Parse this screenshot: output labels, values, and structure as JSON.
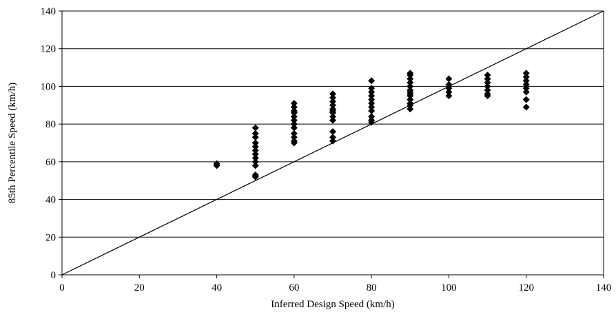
{
  "chart_data": {
    "type": "scatter",
    "title": "",
    "xlabel": "Inferred Design Speed (km/h)",
    "ylabel": "85th Percentile Speed (km/h)",
    "xlim": [
      0,
      140
    ],
    "ylim": [
      0,
      140
    ],
    "x_ticks": [
      "0",
      "20",
      "40",
      "60",
      "80",
      "100",
      "120",
      "140"
    ],
    "y_ticks": [
      "0",
      "20",
      "40",
      "60",
      "80",
      "100",
      "120",
      "140"
    ],
    "grid": "horizontal",
    "legend": "none",
    "reference_line": {
      "from": [
        0,
        0
      ],
      "to": [
        140,
        140
      ]
    },
    "marker": "diamond",
    "marker_color": "#000000",
    "points": [
      [
        40,
        59
      ],
      [
        40,
        58
      ],
      [
        50,
        78
      ],
      [
        50,
        75
      ],
      [
        50,
        73
      ],
      [
        50,
        70
      ],
      [
        50,
        68
      ],
      [
        50,
        66
      ],
      [
        50,
        64
      ],
      [
        50,
        62
      ],
      [
        50,
        60
      ],
      [
        50,
        58
      ],
      [
        50,
        53
      ],
      [
        50,
        52
      ],
      [
        60,
        91
      ],
      [
        60,
        89
      ],
      [
        60,
        87
      ],
      [
        60,
        86
      ],
      [
        60,
        84
      ],
      [
        60,
        82
      ],
      [
        60,
        80
      ],
      [
        60,
        78
      ],
      [
        60,
        75
      ],
      [
        60,
        73
      ],
      [
        60,
        71
      ],
      [
        60,
        70
      ],
      [
        70,
        96
      ],
      [
        70,
        94
      ],
      [
        70,
        92
      ],
      [
        70,
        90
      ],
      [
        70,
        88
      ],
      [
        70,
        87
      ],
      [
        70,
        86
      ],
      [
        70,
        84
      ],
      [
        70,
        82
      ],
      [
        70,
        76
      ],
      [
        70,
        73
      ],
      [
        70,
        71
      ],
      [
        80,
        103
      ],
      [
        80,
        99
      ],
      [
        80,
        97
      ],
      [
        80,
        95
      ],
      [
        80,
        93
      ],
      [
        80,
        91
      ],
      [
        80,
        89
      ],
      [
        80,
        87
      ],
      [
        80,
        84
      ],
      [
        80,
        82
      ],
      [
        80,
        81
      ],
      [
        90,
        107
      ],
      [
        90,
        106
      ],
      [
        90,
        104
      ],
      [
        90,
        102
      ],
      [
        90,
        100
      ],
      [
        90,
        98
      ],
      [
        90,
        97
      ],
      [
        90,
        96
      ],
      [
        90,
        95
      ],
      [
        90,
        93
      ],
      [
        90,
        91
      ],
      [
        90,
        90
      ],
      [
        90,
        88
      ],
      [
        100,
        104
      ],
      [
        100,
        101
      ],
      [
        100,
        99
      ],
      [
        100,
        97
      ],
      [
        100,
        95
      ],
      [
        110,
        106
      ],
      [
        110,
        104
      ],
      [
        110,
        102
      ],
      [
        110,
        100
      ],
      [
        110,
        98
      ],
      [
        110,
        96
      ],
      [
        110,
        95
      ],
      [
        120,
        107
      ],
      [
        120,
        105
      ],
      [
        120,
        103
      ],
      [
        120,
        101
      ],
      [
        120,
        99
      ],
      [
        120,
        97
      ],
      [
        120,
        93
      ],
      [
        120,
        89
      ]
    ]
  }
}
